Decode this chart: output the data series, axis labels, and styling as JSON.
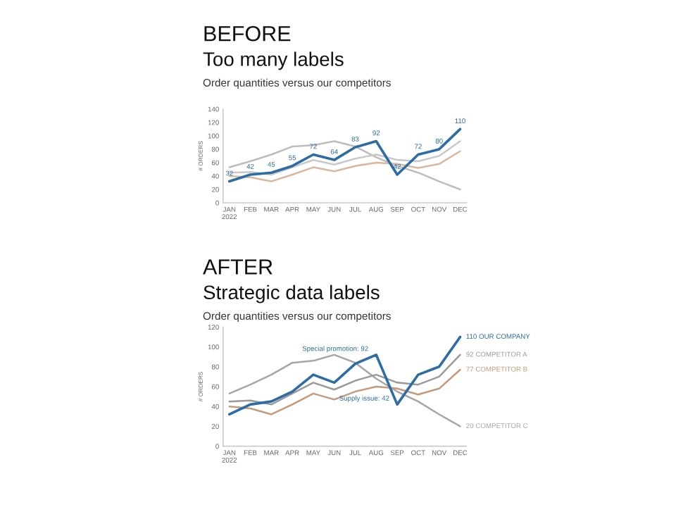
{
  "chart_data": [
    {
      "type": "line",
      "title": "BEFORE",
      "subtitle": "Too many labels",
      "annotations": [
        "Order quantities versus our competitors"
      ],
      "ylabel": "# ORDERS",
      "categories": [
        "JAN\n2022",
        "FEB",
        "MAR",
        "APR",
        "MAY",
        "JUN",
        "JUL",
        "AUG",
        "SEP",
        "OCT",
        "NOV",
        "DEC"
      ],
      "ylim": [
        0,
        140
      ],
      "yticks": [
        0,
        20,
        40,
        60,
        80,
        100,
        120,
        140
      ],
      "grid": false,
      "legend": false,
      "marker": "none",
      "line_style": "solid",
      "series": [
        {
          "color": "#bdbdbd",
          "values": [
            53,
            62,
            72,
            84,
            86,
            92,
            84,
            68,
            55,
            45,
            32,
            20
          ]
        },
        {
          "color": "#c8c8c8",
          "values": [
            45,
            46,
            42,
            53,
            64,
            57,
            66,
            72,
            64,
            62,
            70,
            92
          ]
        },
        {
          "color": "#d9b8a0",
          "values": [
            40,
            38,
            32,
            42,
            53,
            47,
            55,
            60,
            58,
            52,
            58,
            77
          ]
        },
        {
          "color": "#2e6da4",
          "values": [
            32,
            42,
            45,
            55,
            72,
            64,
            83,
            92,
            42,
            72,
            80,
            110
          ],
          "data_labels": true
        }
      ]
    },
    {
      "type": "line",
      "title": "AFTER",
      "subtitle": "Strategic data labels",
      "ylabel": "# ORDERS",
      "annotations": [
        "Order quantities versus our competitors",
        {
          "text": "Special promotion: 92",
          "x": "AUG",
          "y": 92
        },
        {
          "text": "Supply issue: 42",
          "x": "SEP",
          "y": 42
        }
      ],
      "categories": [
        "JAN\n2022",
        "FEB",
        "MAR",
        "APR",
        "MAY",
        "JUN",
        "JUL",
        "AUG",
        "SEP",
        "OCT",
        "NOV",
        "DEC"
      ],
      "ylim": [
        0,
        120
      ],
      "yticks": [
        0,
        20,
        40,
        60,
        80,
        100,
        120
      ],
      "grid": false,
      "legend": false,
      "marker": "none",
      "line_style": "solid",
      "series": [
        {
          "name": "20 COMPETITOR C",
          "color": "#a6a6a6",
          "values": [
            53,
            62,
            72,
            84,
            86,
            92,
            84,
            68,
            55,
            45,
            32,
            20
          ]
        },
        {
          "name": "92 COMPETITOR A",
          "color": "#9a9a9a",
          "values": [
            45,
            46,
            42,
            53,
            64,
            57,
            66,
            72,
            64,
            62,
            70,
            92
          ]
        },
        {
          "name": "77 COMPETITOR B",
          "color": "#c49a7c",
          "values": [
            40,
            38,
            32,
            42,
            53,
            47,
            55,
            60,
            58,
            52,
            58,
            77
          ]
        },
        {
          "name": "110 OUR COMPANY",
          "color": "#2e6da4",
          "values": [
            32,
            42,
            45,
            55,
            72,
            64,
            83,
            92,
            42,
            72,
            80,
            110
          ]
        }
      ]
    }
  ]
}
